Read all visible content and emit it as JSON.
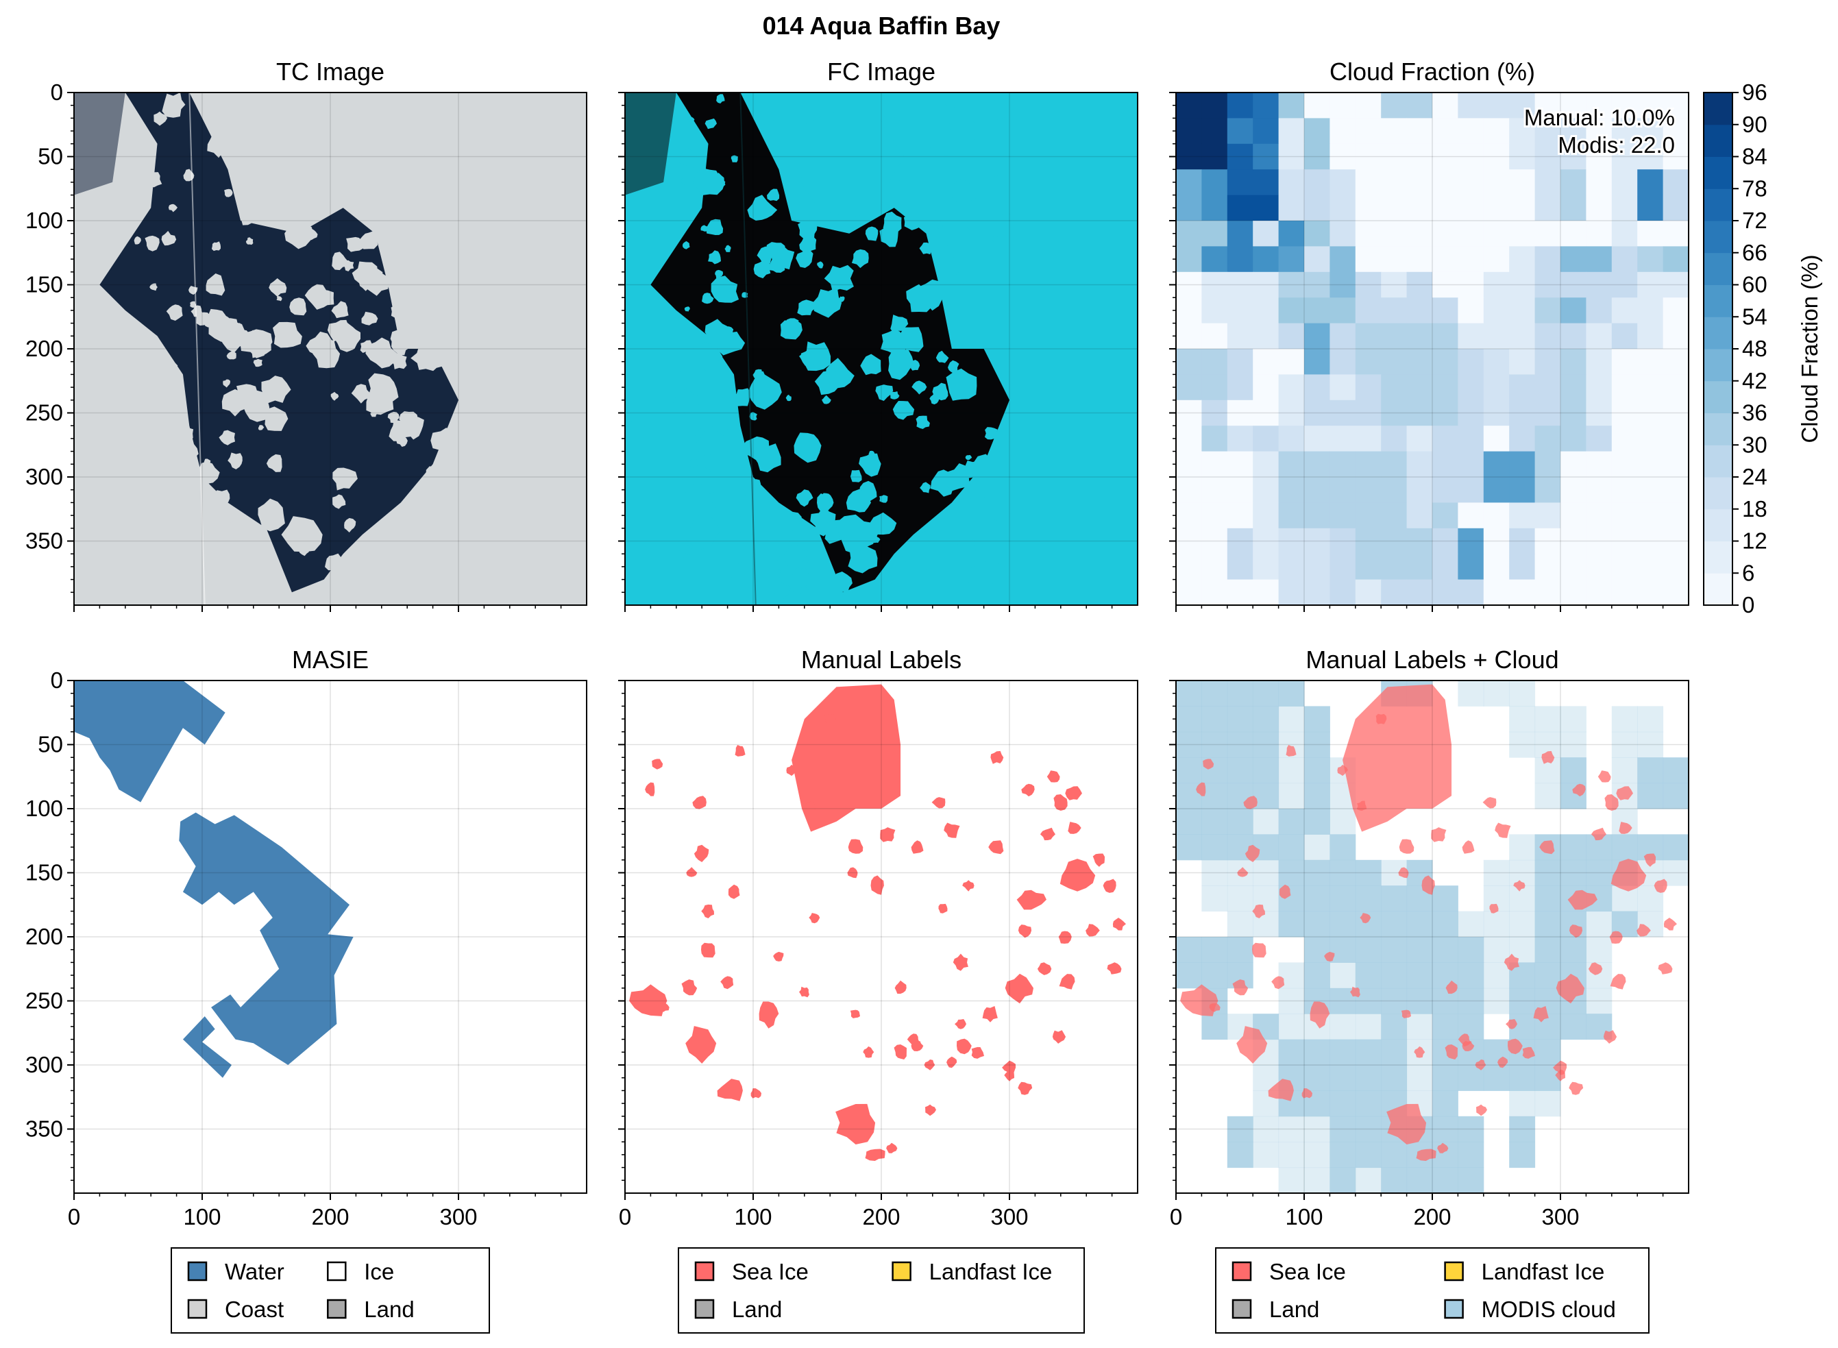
{
  "figure": {
    "title": "014 Aqua Baffin Bay"
  },
  "colors": {
    "water": "#4682b4",
    "coast": "#d3d3d3",
    "ice": "#ffffff",
    "land": "#a9a9a9",
    "sea_ice": "#ff6b6b",
    "landfast_ice": "#ffd43b",
    "modis_cloud": "#a6cee3",
    "tc_water": "#15263f",
    "tc_ice": "#d4d8da",
    "fc_water": "#050608",
    "fc_ice": "#1ec8dc"
  },
  "chart_data": [
    {
      "type": "image",
      "title": "TC Image",
      "xlim": [
        0,
        400
      ],
      "ylim": [
        400,
        0
      ],
      "xticks": [
        0,
        100,
        200,
        300
      ],
      "yticks": [
        0,
        50,
        100,
        150,
        200,
        250,
        300,
        350
      ],
      "show_xticklabels": false,
      "show_yticklabels": true
    },
    {
      "type": "image",
      "title": "FC Image",
      "xlim": [
        0,
        400
      ],
      "ylim": [
        400,
        0
      ],
      "xticks": [
        0,
        100,
        200,
        300
      ],
      "yticks": [
        0,
        50,
        100,
        150,
        200,
        250,
        300,
        350
      ],
      "show_xticklabels": false,
      "show_yticklabels": false
    },
    {
      "type": "heatmap",
      "title": "Cloud Fraction (%)",
      "annotation": [
        "Manual: 10.0%",
        "Modis: 22.0"
      ],
      "cmap": "Blues",
      "clim": [
        0,
        96
      ],
      "colorbar_label": "Cloud Fraction (%)",
      "colorbar_ticks": [
        0,
        6,
        12,
        18,
        24,
        30,
        36,
        42,
        48,
        54,
        60,
        66,
        72,
        78,
        84,
        90,
        96
      ],
      "grid_rows": 20,
      "grid_cols": 20,
      "values": [
        [
          96,
          96,
          78,
          72,
          36,
          0,
          0,
          0,
          30,
          30,
          0,
          18,
          18,
          18,
          0,
          0,
          0,
          0,
          0,
          0
        ],
        [
          96,
          96,
          66,
          72,
          12,
          36,
          0,
          0,
          0,
          0,
          0,
          0,
          0,
          12,
          18,
          18,
          0,
          12,
          12,
          0
        ],
        [
          96,
          96,
          78,
          66,
          12,
          36,
          0,
          0,
          0,
          0,
          0,
          0,
          0,
          12,
          18,
          18,
          0,
          12,
          12,
          0
        ],
        [
          48,
          60,
          78,
          78,
          18,
          24,
          18,
          0,
          0,
          0,
          0,
          0,
          0,
          0,
          18,
          30,
          0,
          12,
          66,
          24
        ],
        [
          48,
          60,
          84,
          84,
          18,
          24,
          18,
          0,
          0,
          0,
          0,
          0,
          0,
          0,
          18,
          30,
          0,
          12,
          66,
          24
        ],
        [
          36,
          36,
          66,
          18,
          60,
          36,
          18,
          0,
          0,
          0,
          0,
          0,
          0,
          0,
          0,
          0,
          0,
          12,
          0,
          0
        ],
        [
          36,
          60,
          66,
          60,
          54,
          18,
          42,
          0,
          0,
          0,
          0,
          0,
          0,
          12,
          24,
          42,
          42,
          24,
          30,
          36
        ],
        [
          0,
          12,
          12,
          12,
          30,
          30,
          42,
          24,
          12,
          24,
          0,
          0,
          12,
          12,
          24,
          24,
          24,
          24,
          12,
          12
        ],
        [
          0,
          12,
          12,
          12,
          36,
          36,
          36,
          24,
          24,
          24,
          24,
          0,
          12,
          12,
          30,
          42,
          24,
          12,
          12,
          0
        ],
        [
          0,
          0,
          12,
          12,
          24,
          48,
          24,
          30,
          30,
          30,
          30,
          12,
          12,
          12,
          24,
          24,
          12,
          24,
          12,
          0
        ],
        [
          30,
          30,
          24,
          0,
          0,
          48,
          24,
          30,
          30,
          30,
          30,
          24,
          18,
          12,
          24,
          30,
          12,
          0,
          0,
          0
        ],
        [
          30,
          30,
          24,
          0,
          12,
          24,
          12,
          24,
          30,
          30,
          30,
          24,
          18,
          24,
          24,
          30,
          12,
          0,
          0,
          0
        ],
        [
          0,
          24,
          0,
          0,
          12,
          24,
          24,
          24,
          30,
          30,
          30,
          24,
          18,
          24,
          24,
          30,
          12,
          0,
          0,
          0
        ],
        [
          0,
          30,
          18,
          24,
          18,
          12,
          12,
          12,
          24,
          12,
          24,
          24,
          0,
          24,
          30,
          30,
          24,
          0,
          0,
          0
        ],
        [
          0,
          0,
          0,
          12,
          30,
          30,
          30,
          30,
          30,
          18,
          24,
          24,
          54,
          54,
          30,
          0,
          0,
          0,
          0,
          0
        ],
        [
          0,
          0,
          0,
          12,
          30,
          30,
          30,
          30,
          30,
          18,
          24,
          24,
          54,
          54,
          30,
          0,
          0,
          0,
          0,
          0
        ],
        [
          0,
          0,
          0,
          12,
          30,
          30,
          30,
          30,
          30,
          18,
          30,
          0,
          0,
          12,
          12,
          0,
          0,
          0,
          0,
          0
        ],
        [
          0,
          0,
          24,
          12,
          18,
          18,
          24,
          30,
          30,
          30,
          24,
          54,
          0,
          24,
          0,
          0,
          0,
          0,
          0,
          0
        ],
        [
          0,
          0,
          24,
          12,
          18,
          18,
          24,
          30,
          30,
          30,
          24,
          54,
          0,
          24,
          0,
          0,
          0,
          0,
          0,
          0
        ],
        [
          0,
          0,
          0,
          0,
          18,
          18,
          24,
          12,
          24,
          24,
          24,
          24,
          0,
          0,
          0,
          0,
          0,
          0,
          0,
          0
        ]
      ],
      "xlim": [
        0,
        400
      ],
      "ylim": [
        400,
        0
      ],
      "xticks": [
        0,
        100,
        200,
        300
      ],
      "yticks": [
        0,
        50,
        100,
        150,
        200,
        250,
        300,
        350
      ],
      "show_xticklabels": false,
      "show_yticklabels": false
    },
    {
      "type": "map",
      "title": "MASIE",
      "xlim": [
        0,
        400
      ],
      "ylim": [
        400,
        0
      ],
      "xticks": [
        0,
        100,
        200,
        300
      ],
      "yticks": [
        0,
        50,
        100,
        150,
        200,
        250,
        300,
        350
      ],
      "show_xticklabels": true,
      "show_yticklabels": true,
      "legend": {
        "location": "bottom",
        "entries": [
          {
            "label": "Water",
            "color": "#4682b4"
          },
          {
            "label": "Ice",
            "color": "#ffffff"
          },
          {
            "label": "Coast",
            "color": "#d3d3d3"
          },
          {
            "label": "Land",
            "color": "#a9a9a9"
          }
        ]
      },
      "regions": [
        {
          "class": "Water",
          "polygon": [
            [
              0,
              0
            ],
            [
              85,
              0
            ],
            [
              118,
              25
            ],
            [
              102,
              50
            ],
            [
              85,
              37
            ],
            [
              52,
              95
            ],
            [
              35,
              85
            ],
            [
              28,
              70
            ],
            [
              20,
              60
            ],
            [
              12,
              45
            ],
            [
              0,
              40
            ]
          ]
        },
        {
          "class": "Water",
          "polygon": [
            [
              83,
              110
            ],
            [
              95,
              103
            ],
            [
              110,
              112
            ],
            [
              125,
              105
            ],
            [
              162,
              130
            ],
            [
              215,
              175
            ],
            [
              198,
              198
            ],
            [
              218,
              200
            ],
            [
              203,
              230
            ],
            [
              205,
              268
            ],
            [
              167,
              300
            ],
            [
              140,
              283
            ],
            [
              126,
              280
            ],
            [
              107,
              255
            ],
            [
              122,
              245
            ],
            [
              130,
              255
            ],
            [
              160,
              225
            ],
            [
              145,
              195
            ],
            [
              155,
              185
            ],
            [
              140,
              165
            ],
            [
              125,
              175
            ],
            [
              113,
              165
            ],
            [
              100,
              175
            ],
            [
              85,
              165
            ],
            [
              95,
              145
            ],
            [
              82,
              125
            ]
          ]
        },
        {
          "class": "Water",
          "polygon": [
            [
              85,
              280
            ],
            [
              102,
              262
            ],
            [
              110,
              272
            ],
            [
              100,
              282
            ],
            [
              123,
              300
            ],
            [
              116,
              310
            ]
          ]
        }
      ]
    },
    {
      "type": "map",
      "title": "Manual Labels",
      "xlim": [
        0,
        400
      ],
      "ylim": [
        400,
        0
      ],
      "xticks": [
        0,
        100,
        200,
        300
      ],
      "yticks": [
        0,
        50,
        100,
        150,
        200,
        250,
        300,
        350
      ],
      "show_xticklabels": true,
      "show_yticklabels": false,
      "legend": {
        "location": "bottom",
        "entries": [
          {
            "label": "Sea Ice",
            "color": "#ff6b6b"
          },
          {
            "label": "Landfast Ice",
            "color": "#ffd43b"
          },
          {
            "label": "Land",
            "color": "#a9a9a9"
          }
        ]
      },
      "sea_ice_floes": [
        [
          20,
          250,
          15,
          12
        ],
        [
          60,
          283,
          11,
          14
        ],
        [
          83,
          320,
          11,
          8
        ],
        [
          112,
          260,
          8,
          10
        ],
        [
          180,
          345,
          16,
          15
        ],
        [
          353,
          152,
          14,
          12
        ],
        [
          308,
          240,
          11,
          10
        ],
        [
          317,
          171,
          10,
          8
        ],
        [
          312,
          195,
          5,
          5
        ],
        [
          262,
          220,
          6,
          6
        ],
        [
          285,
          260,
          6,
          6
        ],
        [
          265,
          285,
          6,
          6
        ],
        [
          215,
          290,
          5,
          6
        ],
        [
          225,
          280,
          5,
          5
        ],
        [
          160,
          30,
          4,
          4
        ],
        [
          215,
          240,
          5,
          5
        ],
        [
          195,
          370,
          8,
          5
        ],
        [
          208,
          365,
          4,
          4
        ],
        [
          180,
          260,
          4,
          4
        ],
        [
          190,
          290,
          4,
          4
        ],
        [
          197,
          160,
          5,
          7
        ],
        [
          178,
          150,
          4,
          4
        ],
        [
          148,
          185,
          4,
          4
        ],
        [
          238,
          335,
          4,
          4
        ],
        [
          275,
          290,
          5,
          5
        ],
        [
          255,
          117,
          6,
          6
        ],
        [
          290,
          130,
          6,
          6
        ],
        [
          330,
          120,
          5,
          5
        ],
        [
          340,
          95,
          6,
          6
        ],
        [
          350,
          88,
          6,
          6
        ],
        [
          60,
          135,
          6,
          6
        ],
        [
          85,
          165,
          5,
          5
        ],
        [
          65,
          210,
          6,
          6
        ],
        [
          80,
          235,
          5,
          5
        ],
        [
          50,
          240,
          6,
          6
        ],
        [
          65,
          180,
          5,
          5
        ],
        [
          58,
          95,
          5,
          5
        ],
        [
          25,
          65,
          4,
          4
        ],
        [
          20,
          85,
          4,
          5
        ],
        [
          90,
          55,
          4,
          5
        ],
        [
          130,
          70,
          4,
          4
        ],
        [
          180,
          130,
          6,
          6
        ],
        [
          205,
          120,
          6,
          6
        ],
        [
          228,
          130,
          5,
          5
        ],
        [
          245,
          95,
          5,
          5
        ],
        [
          290,
          60,
          5,
          5
        ],
        [
          315,
          85,
          5,
          5
        ],
        [
          335,
          75,
          5,
          5
        ],
        [
          350,
          115,
          5,
          5
        ],
        [
          370,
          140,
          5,
          5
        ],
        [
          378,
          160,
          5,
          5
        ],
        [
          385,
          190,
          5,
          5
        ],
        [
          365,
          195,
          5,
          5
        ],
        [
          382,
          225,
          5,
          5
        ],
        [
          345,
          235,
          6,
          6
        ],
        [
          338,
          278,
          5,
          5
        ],
        [
          300,
          302,
          5,
          5
        ],
        [
          312,
          318,
          5,
          5
        ],
        [
          343,
          200,
          5,
          5
        ],
        [
          327,
          225,
          5,
          5
        ],
        [
          268,
          160,
          4,
          4
        ],
        [
          248,
          178,
          4,
          4
        ],
        [
          228,
          285,
          4,
          4
        ],
        [
          238,
          300,
          4,
          4
        ],
        [
          255,
          298,
          4,
          4
        ],
        [
          262,
          268,
          4,
          4
        ],
        [
          102,
          322,
          4,
          4
        ],
        [
          120,
          215,
          4,
          4
        ],
        [
          140,
          243,
          4,
          4
        ],
        [
          52,
          150,
          4,
          4
        ],
        [
          30,
          255,
          4,
          4
        ],
        [
          145,
          98,
          4,
          4
        ],
        [
          300,
          308,
          4,
          4
        ]
      ],
      "large_floe": [
        [
          130,
          62
        ],
        [
          140,
          30
        ],
        [
          165,
          5
        ],
        [
          200,
          3
        ],
        [
          210,
          15
        ],
        [
          215,
          50
        ],
        [
          215,
          90
        ],
        [
          200,
          100
        ],
        [
          180,
          100
        ],
        [
          165,
          110
        ],
        [
          145,
          118
        ],
        [
          138,
          100
        ]
      ]
    },
    {
      "type": "map",
      "title": "Manual Labels + Cloud",
      "xlim": [
        0,
        400
      ],
      "ylim": [
        400,
        0
      ],
      "xticks": [
        0,
        100,
        200,
        300
      ],
      "yticks": [
        0,
        50,
        100,
        150,
        200,
        250,
        300,
        350
      ],
      "show_xticklabels": true,
      "show_yticklabels": false,
      "legend": {
        "location": "bottom",
        "entries": [
          {
            "label": "Sea Ice",
            "color": "#ff6b6b"
          },
          {
            "label": "Landfast Ice",
            "color": "#ffd43b"
          },
          {
            "label": "Land",
            "color": "#a9a9a9"
          },
          {
            "label": "MODIS cloud",
            "color": "#a6cee3"
          }
        ]
      }
    }
  ]
}
